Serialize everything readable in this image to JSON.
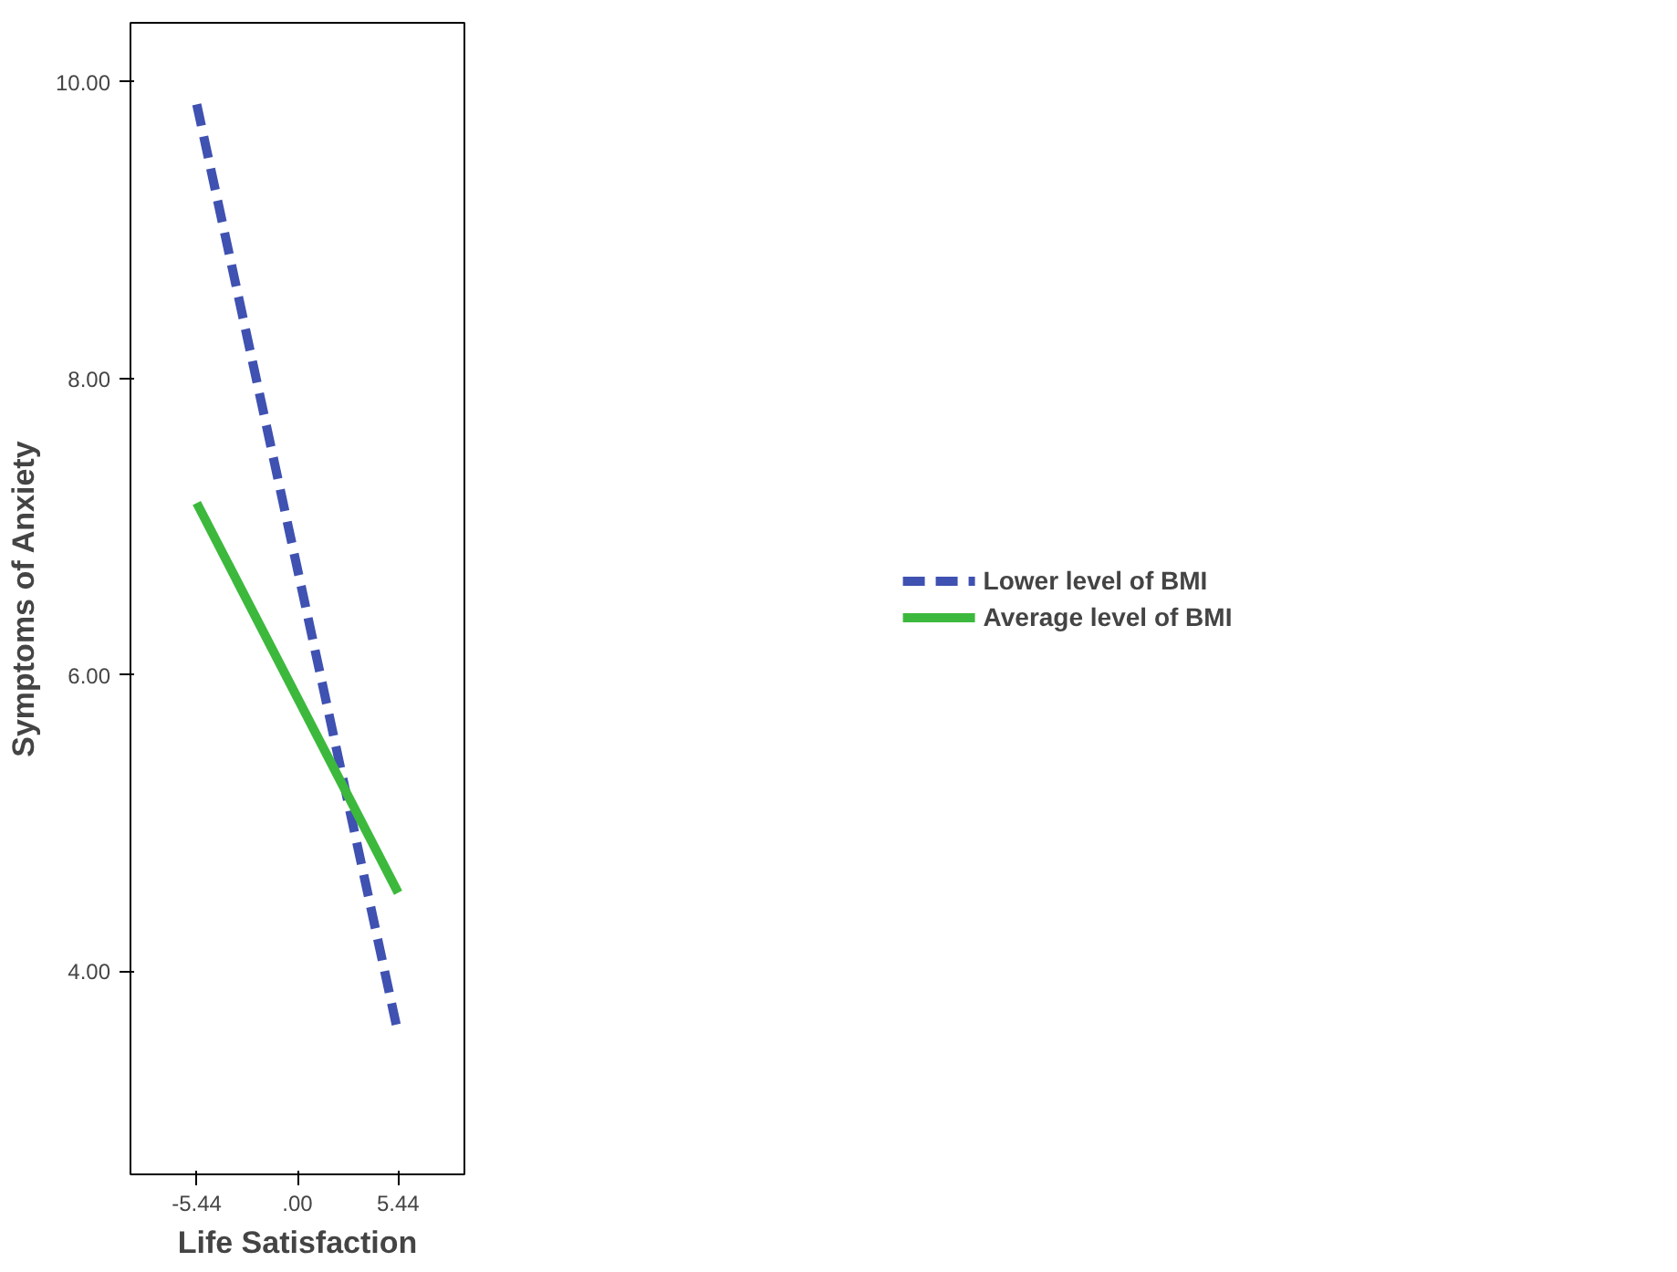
{
  "chart_data": {
    "type": "line",
    "xlabel": "Life Satisfaction",
    "ylabel": "Symptoms of Anxiety",
    "x": [
      -5.44,
      5.44
    ],
    "series": [
      {
        "name": "Lower level of BMI",
        "color": "#3f51b1",
        "values": [
          9.85,
          3.58
        ],
        "line_style": "dashed"
      },
      {
        "name": "Average level of BMI",
        "color": "#3cb93c",
        "values": [
          7.16,
          4.53
        ],
        "line_style": "solid"
      }
    ],
    "xlim": [
      -9.02,
      9.02
    ],
    "ylim": [
      2.63,
      10.4
    ],
    "xticks": [
      {
        "value": -5.44,
        "label": "-5.44"
      },
      {
        "value": 0,
        "label": ".00"
      },
      {
        "value": 5.44,
        "label": "5.44"
      }
    ],
    "yticks": [
      {
        "value": 4,
        "label": "4.00"
      },
      {
        "value": 6,
        "label": "6.00"
      },
      {
        "value": 8,
        "label": "8.00"
      },
      {
        "value": 10,
        "label": "10.00"
      }
    ],
    "grid": false,
    "legend": "right",
    "marker": "none"
  }
}
